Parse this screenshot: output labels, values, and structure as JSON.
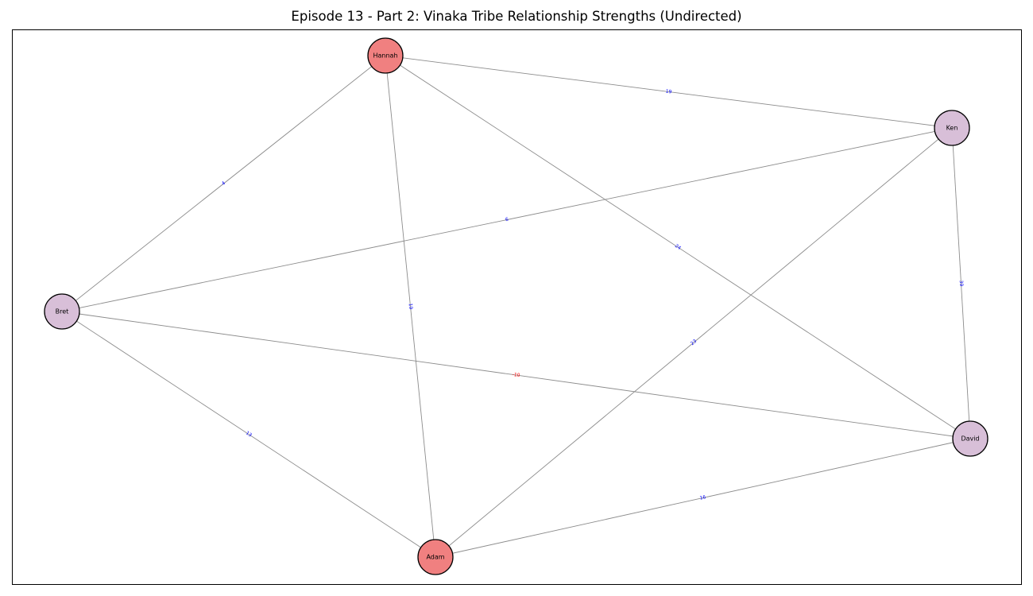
{
  "title": "Episode 13 - Part 2: Vinaka Tribe Relationship Strengths (Undirected)",
  "colors": {
    "node_red": "#f08080",
    "node_purple": "#d8bfd8",
    "label_positive": "#0000ff",
    "label_negative": "#ff0000",
    "edge": "#8c8c8c"
  },
  "nodes": [
    {
      "id": "Hannah",
      "label": "Hannah",
      "color": "#f08080"
    },
    {
      "id": "Ken",
      "label": "Ken",
      "color": "#d8bfd8"
    },
    {
      "id": "Bret",
      "label": "Bret",
      "color": "#d8bfd8"
    },
    {
      "id": "David",
      "label": "David",
      "color": "#d8bfd8"
    },
    {
      "id": "Adam",
      "label": "Adam",
      "color": "#f08080"
    }
  ],
  "edges": [
    {
      "source": "Hannah",
      "target": "Ken",
      "weight": 19
    },
    {
      "source": "Hannah",
      "target": "Bret",
      "weight": 4
    },
    {
      "source": "Hannah",
      "target": "Adam",
      "weight": 19
    },
    {
      "source": "Hannah",
      "target": "David",
      "weight": 24
    },
    {
      "source": "Ken",
      "target": "Bret",
      "weight": 6
    },
    {
      "source": "Ken",
      "target": "Adam",
      "weight": 23
    },
    {
      "source": "Ken",
      "target": "David",
      "weight": 39
    },
    {
      "source": "Bret",
      "target": "David",
      "weight": -10
    },
    {
      "source": "Bret",
      "target": "Adam",
      "weight": 13
    },
    {
      "source": "Adam",
      "target": "David",
      "weight": 16
    }
  ]
}
